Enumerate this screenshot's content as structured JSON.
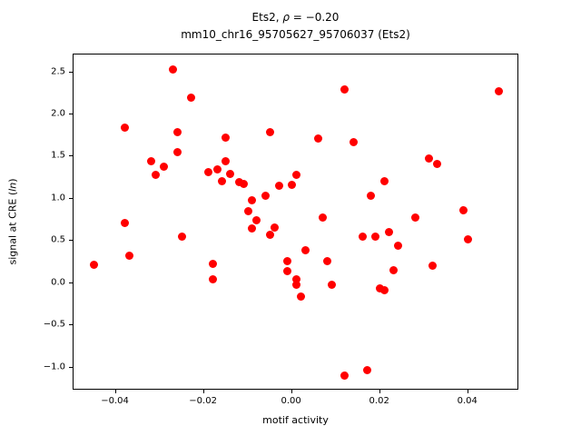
{
  "title": {
    "line1_prefix": "Ets2, ",
    "line1_math": "ρ",
    "line1_rest": " = −0.20",
    "line2": "mm10_chr16_95705627_95706037 (Ets2)"
  },
  "axes": {
    "xlabel": "motif activity",
    "ylabel_prefix": "signal at CRE (",
    "ylabel_italic": "ln",
    "ylabel_suffix": ")"
  },
  "chart_data": {
    "type": "scatter",
    "title": "Ets2, ρ = −0.20 / mm10_chr16_95705627_95706037 (Ets2)",
    "xlabel": "motif activity",
    "ylabel": "signal at CRE (ln)",
    "marker_color": "#ff0000",
    "legend": "none",
    "grid": false,
    "xlim": [
      -0.0496,
      0.0516
    ],
    "ylim": [
      -1.27,
      2.71
    ],
    "xticks": [
      -0.04,
      -0.02,
      0.0,
      0.02,
      0.04
    ],
    "yticks": [
      -1.0,
      -0.5,
      0.0,
      0.5,
      1.0,
      1.5,
      2.0,
      2.5
    ],
    "points": [
      [
        -0.045,
        0.22
      ],
      [
        -0.038,
        1.84
      ],
      [
        -0.038,
        0.72
      ],
      [
        -0.037,
        0.33
      ],
      [
        -0.032,
        1.45
      ],
      [
        -0.031,
        1.28
      ],
      [
        -0.029,
        1.38
      ],
      [
        -0.027,
        2.53
      ],
      [
        -0.026,
        1.79
      ],
      [
        -0.026,
        1.55
      ],
      [
        -0.025,
        0.55
      ],
      [
        -0.023,
        2.2
      ],
      [
        -0.019,
        1.32
      ],
      [
        -0.018,
        0.23
      ],
      [
        -0.018,
        0.05
      ],
      [
        -0.017,
        1.35
      ],
      [
        -0.016,
        1.21
      ],
      [
        -0.015,
        1.73
      ],
      [
        -0.015,
        1.45
      ],
      [
        -0.014,
        1.3
      ],
      [
        -0.012,
        1.2
      ],
      [
        -0.011,
        1.18
      ],
      [
        -0.01,
        0.85
      ],
      [
        -0.009,
        0.98
      ],
      [
        -0.009,
        0.65
      ],
      [
        -0.008,
        0.75
      ],
      [
        -0.006,
        1.04
      ],
      [
        -0.005,
        1.79
      ],
      [
        -0.005,
        0.57
      ],
      [
        -0.004,
        0.66
      ],
      [
        -0.003,
        1.16
      ],
      [
        -0.001,
        0.26
      ],
      [
        -0.001,
        0.14
      ],
      [
        0.0,
        1.17
      ],
      [
        0.001,
        1.28
      ],
      [
        0.001,
        0.05
      ],
      [
        0.001,
        -0.02
      ],
      [
        0.002,
        -0.16
      ],
      [
        0.003,
        0.39
      ],
      [
        0.006,
        1.72
      ],
      [
        0.007,
        0.78
      ],
      [
        0.008,
        0.26
      ],
      [
        0.009,
        -0.02
      ],
      [
        0.012,
        2.3
      ],
      [
        0.012,
        -1.09
      ],
      [
        0.014,
        1.67
      ],
      [
        0.016,
        0.55
      ],
      [
        0.017,
        -1.03
      ],
      [
        0.018,
        1.04
      ],
      [
        0.019,
        0.55
      ],
      [
        0.02,
        -0.06
      ],
      [
        0.021,
        -0.08
      ],
      [
        0.021,
        1.21
      ],
      [
        0.022,
        0.61
      ],
      [
        0.023,
        0.15
      ],
      [
        0.024,
        0.45
      ],
      [
        0.028,
        0.78
      ],
      [
        0.031,
        1.48
      ],
      [
        0.032,
        0.21
      ],
      [
        0.033,
        1.41
      ],
      [
        0.039,
        0.86
      ],
      [
        0.04,
        0.52
      ],
      [
        0.047,
        2.27
      ]
    ]
  }
}
